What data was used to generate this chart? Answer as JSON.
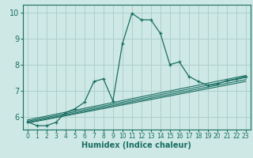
{
  "title": "",
  "xlabel": "Humidex (Indice chaleur)",
  "bg_color": "#cde8e5",
  "grid_color": "#aed0cc",
  "line_color": "#1a6e62",
  "xlim": [
    -0.5,
    23.5
  ],
  "ylim": [
    5.5,
    10.3
  ],
  "xticks": [
    0,
    1,
    2,
    3,
    4,
    5,
    6,
    7,
    8,
    9,
    10,
    11,
    12,
    13,
    14,
    15,
    16,
    17,
    18,
    19,
    20,
    21,
    22,
    23
  ],
  "yticks": [
    6,
    7,
    8,
    9,
    10
  ],
  "main_series": {
    "x": [
      0,
      1,
      2,
      3,
      4,
      5,
      6,
      7,
      8,
      9,
      10,
      11,
      12,
      13,
      14,
      15,
      16,
      17,
      18,
      19,
      20,
      21,
      22,
      23
    ],
    "y": [
      5.8,
      5.65,
      5.65,
      5.78,
      6.15,
      6.3,
      6.55,
      7.35,
      7.45,
      6.6,
      8.8,
      9.97,
      9.72,
      9.72,
      9.2,
      8.0,
      8.1,
      7.55,
      7.35,
      7.2,
      7.25,
      7.38,
      7.45,
      7.55
    ]
  },
  "linear_lines": [
    {
      "x0": 0,
      "y0": 5.75,
      "x1": 23,
      "y1": 7.35
    },
    {
      "x0": 0,
      "y0": 5.78,
      "x1": 23,
      "y1": 7.42
    },
    {
      "x0": 0,
      "y0": 5.82,
      "x1": 23,
      "y1": 7.5
    },
    {
      "x0": 0,
      "y0": 5.87,
      "x1": 23,
      "y1": 7.58
    }
  ]
}
